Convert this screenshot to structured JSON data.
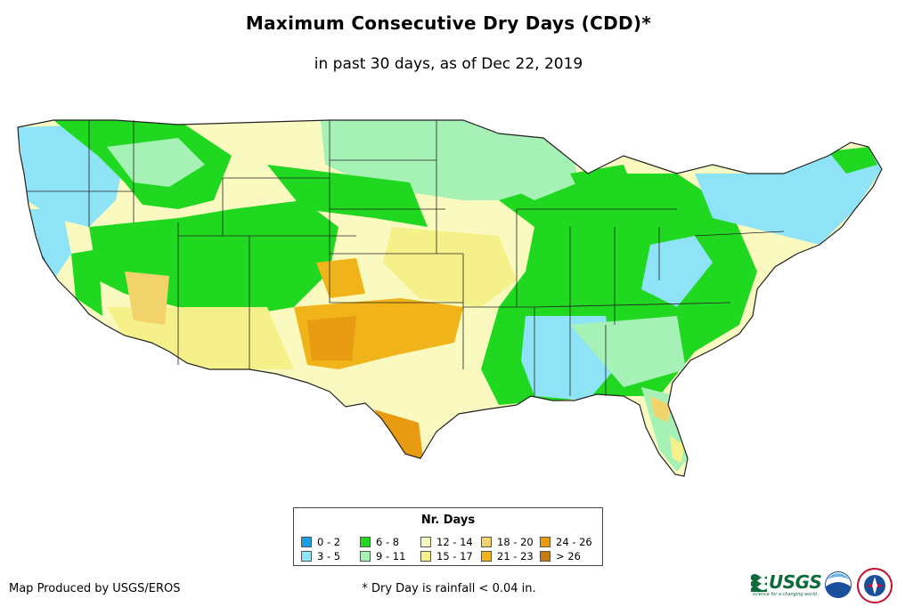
{
  "header": {
    "title": "Maximum Consecutive Dry Days (CDD)*",
    "subtitle": "in past 30 days, as of Dec 22, 2019"
  },
  "legend": {
    "title": "Nr. Days",
    "items": [
      {
        "label": "0 - 2",
        "color": "#1a9fe6"
      },
      {
        "label": "3 - 5",
        "color": "#8fe3f7"
      },
      {
        "label": "6 - 8",
        "color": "#20d820"
      },
      {
        "label": "9 - 11",
        "color": "#a6f2b6"
      },
      {
        "label": "12 - 14",
        "color": "#fafac0"
      },
      {
        "label": "15 - 17",
        "color": "#f5f08a"
      },
      {
        "label": "18 - 20",
        "color": "#f2d36b"
      },
      {
        "label": "21 - 23",
        "color": "#f0b31a"
      },
      {
        "label": "24 - 26",
        "color": "#e89a10"
      },
      {
        "label": "> 26",
        "color": "#c77a10"
      }
    ]
  },
  "footer": {
    "credit": "Map Produced by USGS/EROS",
    "footnote": "* Dry Day is rainfall < 0.04 in."
  },
  "logos": {
    "usgs": "USGS",
    "usgs_tagline": "science for a changing world",
    "noaa": "noaa",
    "nws": "NATIONAL WEATHER SERVICE"
  }
}
